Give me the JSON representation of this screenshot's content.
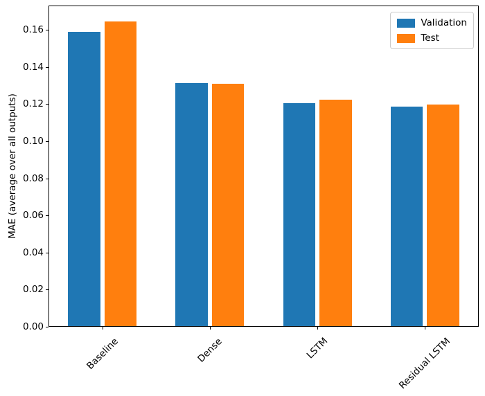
{
  "figure": {
    "background": "#ffffff",
    "text_color": "#000000",
    "spine_color": "#000000",
    "legend_border_color": "#cccccc"
  },
  "chart_data": {
    "type": "bar",
    "ylabel": "MAE (average over all outputs)",
    "categories": [
      "Baseline",
      "Dense",
      "LSTM",
      "Residual LSTM"
    ],
    "series": [
      {
        "name": "Validation",
        "color": "#1f77b4",
        "values": [
          0.159,
          0.1312,
          0.1205,
          0.1188
        ]
      },
      {
        "name": "Test",
        "color": "#ff7f0e",
        "values": [
          0.1645,
          0.1308,
          0.1222,
          0.1198
        ]
      }
    ],
    "ylim": [
      0,
      0.1731
    ],
    "yticks": [
      {
        "value": 0.0,
        "label": "0.00"
      },
      {
        "value": 0.02,
        "label": "0.02"
      },
      {
        "value": 0.04,
        "label": "0.04"
      },
      {
        "value": 0.06,
        "label": "0.06"
      },
      {
        "value": 0.08,
        "label": "0.08"
      },
      {
        "value": 0.1,
        "label": "0.10"
      },
      {
        "value": 0.12,
        "label": "0.12"
      },
      {
        "value": 0.14,
        "label": "0.14"
      },
      {
        "value": 0.16,
        "label": "0.16"
      }
    ],
    "xtick_rotation_deg": 45,
    "grid": false,
    "legend": {
      "position": "upper right",
      "entries": [
        "Validation",
        "Test"
      ]
    }
  }
}
